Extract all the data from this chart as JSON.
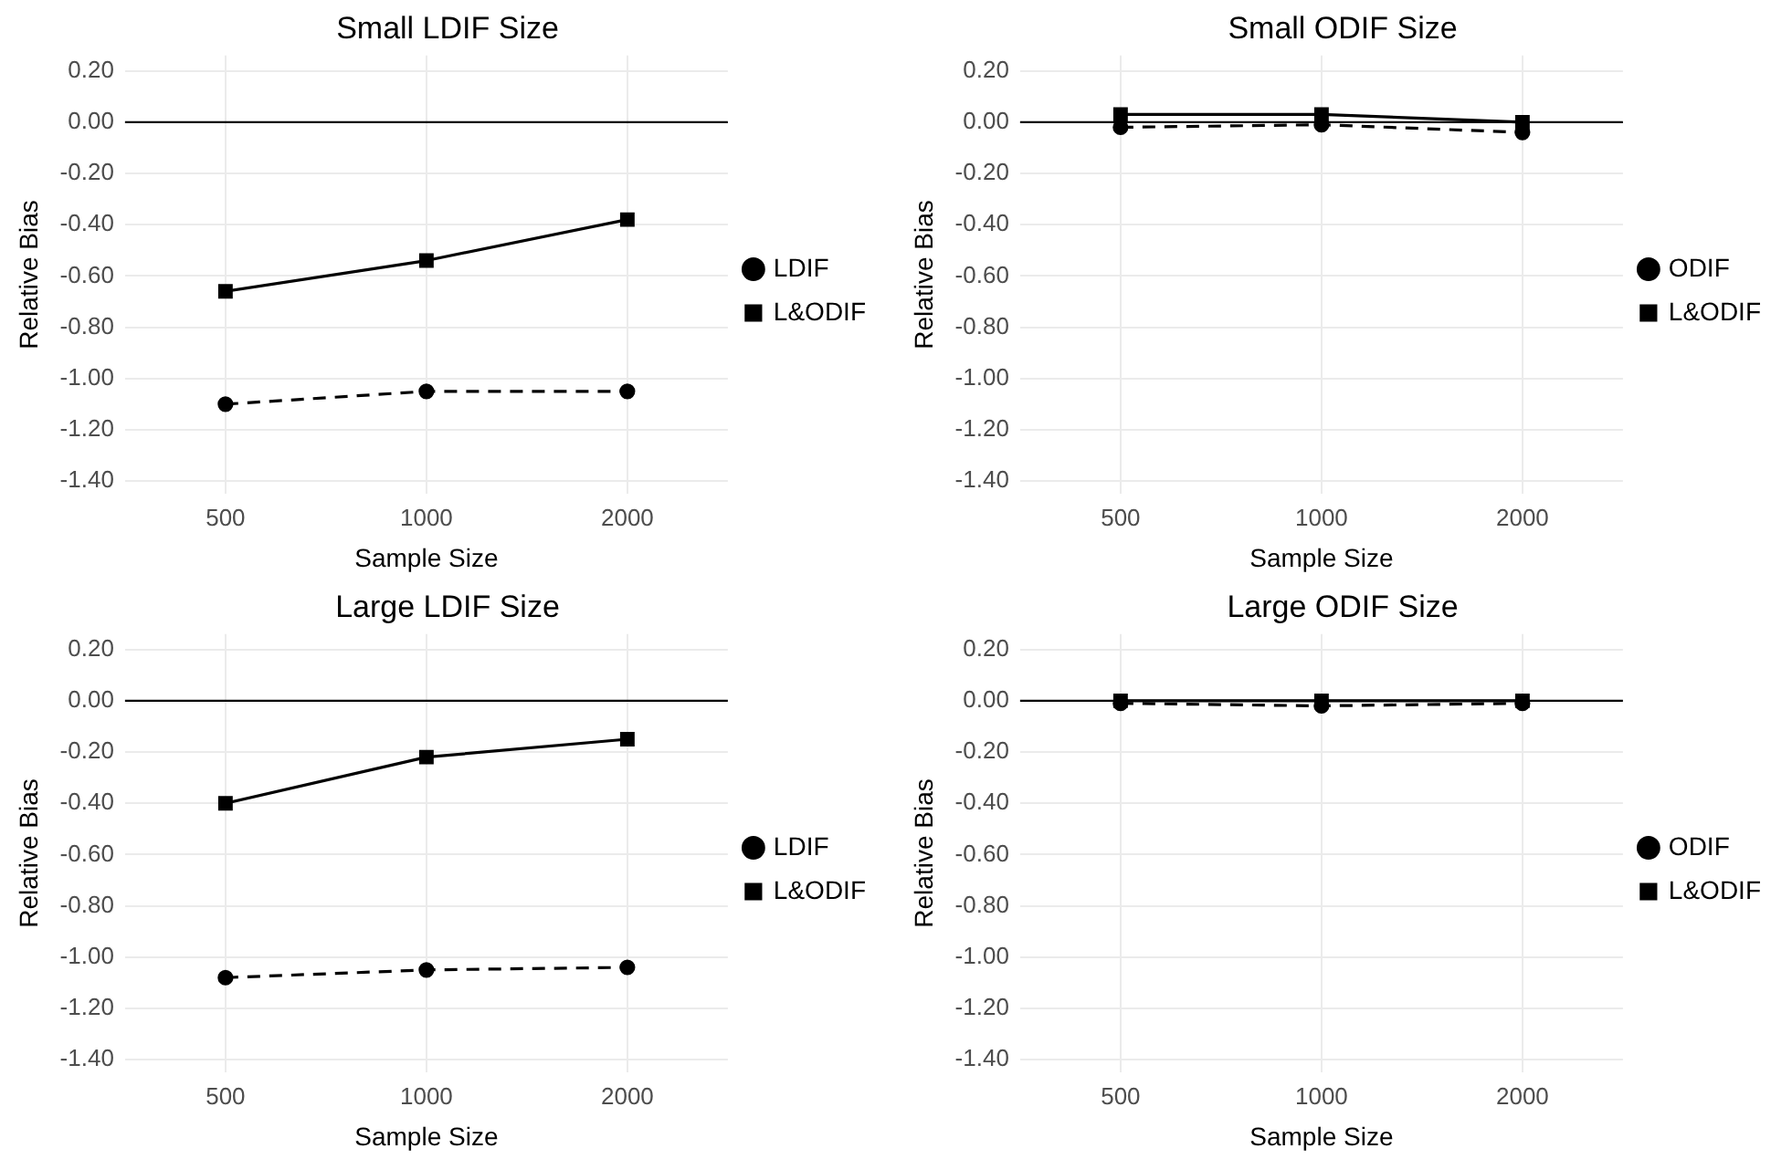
{
  "chart_data": [
    {
      "type": "line",
      "title": "Small LDIF Size",
      "xlabel": "Sample Size",
      "ylabel": "Relative Bias",
      "categories": [
        "500",
        "1000",
        "2000"
      ],
      "series": [
        {
          "name": "LDIF",
          "color": "#000000",
          "values": [
            -1.1,
            -1.05,
            -1.05
          ],
          "marker": "circle",
          "line_style": "dashed"
        },
        {
          "name": "L&ODIF",
          "color": "#000000",
          "values": [
            -0.66,
            -0.54,
            -0.38
          ],
          "marker": "square",
          "line_style": "solid"
        }
      ],
      "ylim": [
        -1.45,
        0.26
      ],
      "yticks": [
        {
          "value": 0.2,
          "label": "0.20"
        },
        {
          "value": 0,
          "label": "0.00"
        },
        {
          "value": -0.2,
          "label": "-0.20"
        },
        {
          "value": -0.4,
          "label": "-0.40"
        },
        {
          "value": -0.6,
          "label": "-0.60"
        },
        {
          "value": -0.8,
          "label": "-0.80"
        },
        {
          "value": -1.0,
          "label": "-1.00"
        },
        {
          "value": -1.2,
          "label": "-1.20"
        },
        {
          "value": -1.4,
          "label": "-1.40"
        }
      ],
      "ref_lines": [
        {
          "axis": "y",
          "value": 0,
          "color": "#000000"
        }
      ],
      "grid": true,
      "legend": "right"
    },
    {
      "type": "line",
      "title": "Small ODIF Size",
      "xlabel": "Sample Size",
      "ylabel": "Relative Bias",
      "categories": [
        "500",
        "1000",
        "2000"
      ],
      "series": [
        {
          "name": "ODIF",
          "color": "#000000",
          "values": [
            -0.02,
            -0.01,
            -0.04
          ],
          "marker": "circle",
          "line_style": "dashed"
        },
        {
          "name": "L&ODIF",
          "color": "#000000",
          "values": [
            0.03,
            0.03,
            0.0
          ],
          "marker": "square",
          "line_style": "solid"
        }
      ],
      "ylim": [
        -1.45,
        0.26
      ],
      "yticks": [
        {
          "value": 0.2,
          "label": "0.20"
        },
        {
          "value": 0,
          "label": "0.00"
        },
        {
          "value": -0.2,
          "label": "-0.20"
        },
        {
          "value": -0.4,
          "label": "-0.40"
        },
        {
          "value": -0.6,
          "label": "-0.60"
        },
        {
          "value": -0.8,
          "label": "-0.80"
        },
        {
          "value": -1.0,
          "label": "-1.00"
        },
        {
          "value": -1.2,
          "label": "-1.20"
        },
        {
          "value": -1.4,
          "label": "-1.40"
        }
      ],
      "ref_lines": [
        {
          "axis": "y",
          "value": 0,
          "color": "#000000"
        }
      ],
      "grid": true,
      "legend": "right"
    },
    {
      "type": "line",
      "title": "Large LDIF Size",
      "xlabel": "Sample Size",
      "ylabel": "Relative Bias",
      "categories": [
        "500",
        "1000",
        "2000"
      ],
      "series": [
        {
          "name": "LDIF",
          "color": "#000000",
          "values": [
            -1.08,
            -1.05,
            -1.04
          ],
          "marker": "circle",
          "line_style": "dashed"
        },
        {
          "name": "L&ODIF",
          "color": "#000000",
          "values": [
            -0.4,
            -0.22,
            -0.15
          ],
          "marker": "square",
          "line_style": "solid"
        }
      ],
      "ylim": [
        -1.45,
        0.26
      ],
      "yticks": [
        {
          "value": 0.2,
          "label": "0.20"
        },
        {
          "value": 0,
          "label": "0.00"
        },
        {
          "value": -0.2,
          "label": "-0.20"
        },
        {
          "value": -0.4,
          "label": "-0.40"
        },
        {
          "value": -0.6,
          "label": "-0.60"
        },
        {
          "value": -0.8,
          "label": "-0.80"
        },
        {
          "value": -1.0,
          "label": "-1.00"
        },
        {
          "value": -1.2,
          "label": "-1.20"
        },
        {
          "value": -1.4,
          "label": "-1.40"
        }
      ],
      "ref_lines": [
        {
          "axis": "y",
          "value": 0,
          "color": "#000000"
        }
      ],
      "grid": true,
      "legend": "right"
    },
    {
      "type": "line",
      "title": "Large ODIF Size",
      "xlabel": "Sample Size",
      "ylabel": "Relative Bias",
      "categories": [
        "500",
        "1000",
        "2000"
      ],
      "series": [
        {
          "name": "ODIF",
          "color": "#000000",
          "values": [
            -0.01,
            -0.02,
            -0.01
          ],
          "marker": "circle",
          "line_style": "dashed"
        },
        {
          "name": "L&ODIF",
          "color": "#000000",
          "values": [
            0.0,
            0.0,
            0.0
          ],
          "marker": "square",
          "line_style": "solid"
        }
      ],
      "ylim": [
        -1.45,
        0.26
      ],
      "yticks": [
        {
          "value": 0.2,
          "label": "0.20"
        },
        {
          "value": 0,
          "label": "0.00"
        },
        {
          "value": -0.2,
          "label": "-0.20"
        },
        {
          "value": -0.4,
          "label": "-0.40"
        },
        {
          "value": -0.6,
          "label": "-0.60"
        },
        {
          "value": -0.8,
          "label": "-0.80"
        },
        {
          "value": -1.0,
          "label": "-1.00"
        },
        {
          "value": -1.2,
          "label": "-1.20"
        },
        {
          "value": -1.4,
          "label": "-1.40"
        }
      ],
      "ref_lines": [
        {
          "axis": "y",
          "value": 0,
          "color": "#000000"
        }
      ],
      "grid": true,
      "legend": "right"
    }
  ]
}
